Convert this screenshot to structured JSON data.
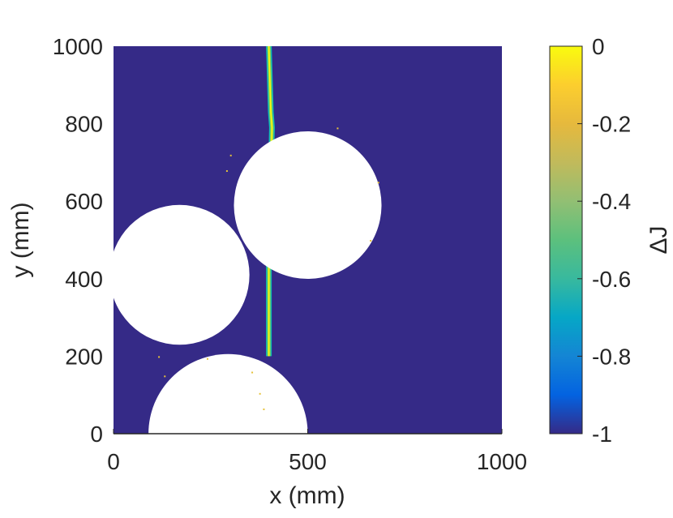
{
  "chart_data": {
    "type": "heatmap",
    "xlabel": "x (mm)",
    "ylabel": "y (mm)",
    "xlim": [
      0,
      1000
    ],
    "ylim": [
      0,
      1000
    ],
    "xticks": [
      0,
      500,
      1000
    ],
    "yticks": [
      0,
      200,
      400,
      600,
      800,
      1000
    ],
    "colorbar": {
      "label": "ΔJ",
      "range": [
        -1,
        0
      ],
      "ticks": [
        0,
        -0.2,
        -0.4,
        -0.6,
        -0.8,
        -1
      ],
      "colormap": "parula"
    },
    "background_value": -1,
    "excluded_circles": [
      {
        "cx": 500,
        "cy": 590,
        "r": 190
      },
      {
        "cx": 170,
        "cy": 410,
        "r": 180
      },
      {
        "cx": 295,
        "cy": 0,
        "r": 205
      }
    ],
    "crack_line": [
      {
        "x": 400,
        "y": 1000
      },
      {
        "x": 405,
        "y": 830
      },
      {
        "x": 408,
        "y": 790
      },
      {
        "x": 400,
        "y": 450
      },
      {
        "x": 400,
        "y": 200
      }
    ],
    "crack_value_range": [
      -0.6,
      0
    ]
  },
  "colors": {
    "background": "#352a87",
    "crack_core": "#f9fb0e",
    "crack_edge": "#0fbab5",
    "axis": "#262626",
    "scatter_dots": "#e6c23a"
  }
}
